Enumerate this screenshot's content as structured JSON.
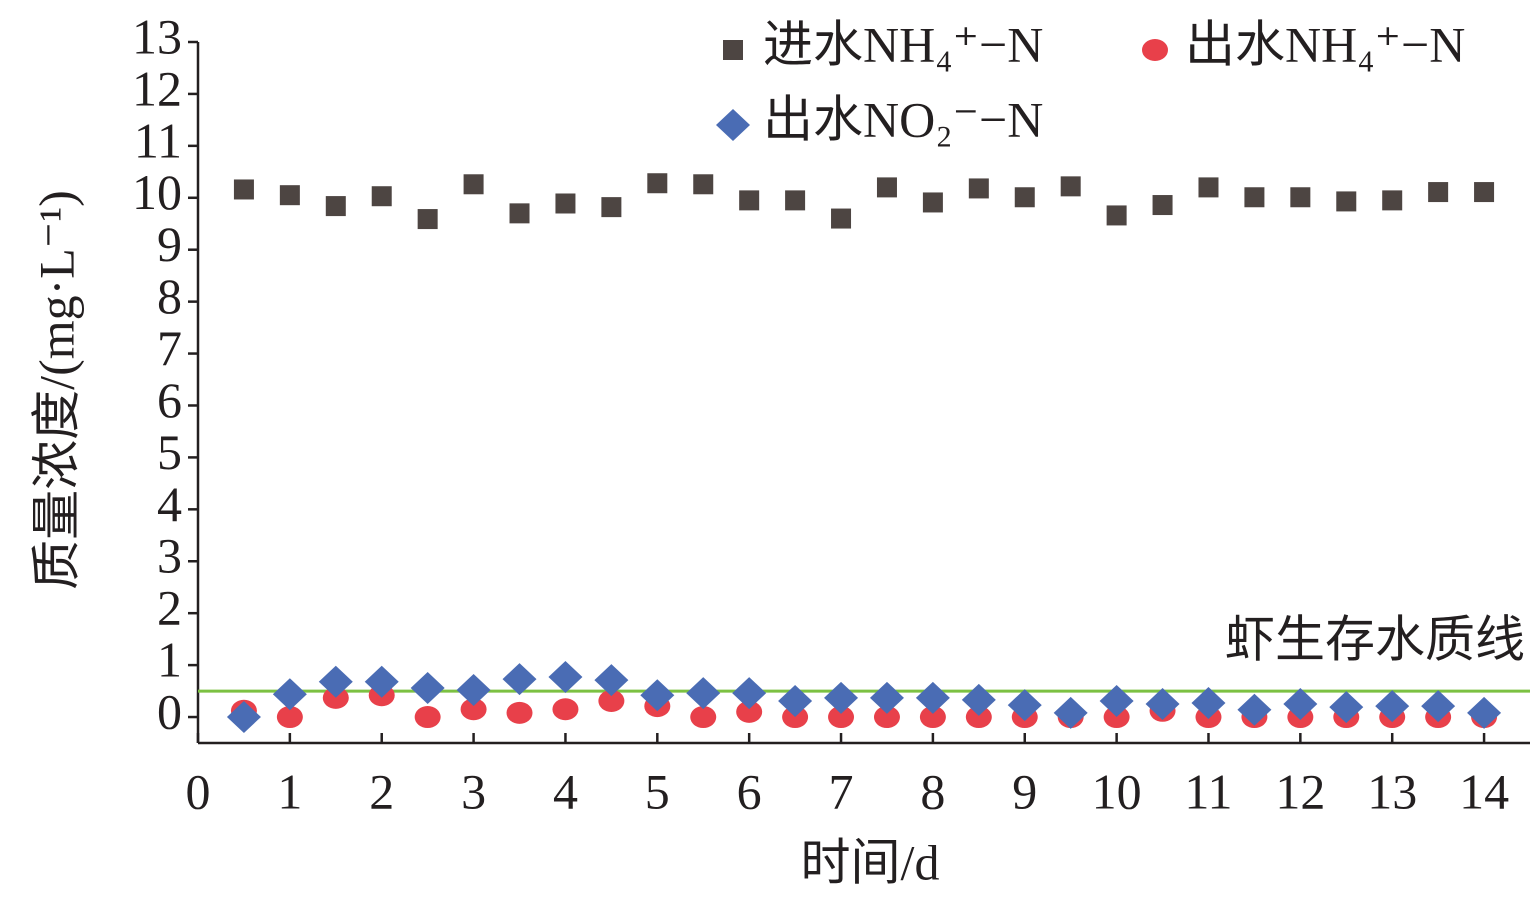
{
  "chart_data": {
    "type": "scatter",
    "x_label": "时间/d",
    "y_label": "质量浓度/(mg·L⁻¹)",
    "x": [
      0.5,
      1,
      1.5,
      2,
      2.5,
      3,
      3.5,
      4,
      4.5,
      5,
      5.5,
      6,
      6.5,
      7,
      7.5,
      8,
      8.5,
      9,
      9.5,
      10,
      10.5,
      11,
      11.5,
      12,
      12.5,
      13,
      13.5,
      14
    ],
    "xlim": [
      0,
      14.5
    ],
    "xticks": [
      0,
      1,
      2,
      3,
      4,
      5,
      6,
      7,
      8,
      9,
      10,
      11,
      12,
      13,
      14
    ],
    "ylim": [
      -0.5,
      13
    ],
    "yticks": [
      0,
      1,
      2,
      3,
      4,
      5,
      6,
      7,
      8,
      9,
      10,
      11,
      12,
      13
    ],
    "grid": false,
    "series": [
      {
        "name": "进水NH₄⁺−N",
        "color": "#4d4542",
        "marker": "square",
        "values": [
          10.16,
          10.05,
          9.84,
          10.03,
          9.59,
          10.26,
          9.7,
          9.89,
          9.82,
          10.28,
          10.26,
          9.95,
          9.95,
          9.6,
          10.2,
          9.91,
          10.18,
          10.01,
          10.22,
          9.66,
          9.86,
          10.2,
          10.01,
          10.01,
          9.93,
          9.95,
          10.11,
          10.11
        ]
      },
      {
        "name": "出水NH₄⁺−N",
        "color": "#e8404a",
        "marker": "circle",
        "values": [
          0.12,
          0,
          0.37,
          0.42,
          0,
          0.15,
          0.08,
          0.15,
          0.31,
          0.21,
          0,
          0.1,
          0,
          0,
          0,
          0,
          0,
          0,
          0,
          0,
          0.12,
          0,
          0,
          0,
          0,
          0,
          0,
          0
        ]
      },
      {
        "name": "出水NO₂⁻−N",
        "color": "#4a6cb4",
        "marker": "diamond",
        "values": [
          0,
          0.44,
          0.68,
          0.68,
          0.56,
          0.52,
          0.73,
          0.77,
          0.71,
          0.42,
          0.46,
          0.46,
          0.31,
          0.37,
          0.37,
          0.37,
          0.33,
          0.23,
          0.08,
          0.31,
          0.25,
          0.27,
          0.14,
          0.25,
          0.19,
          0.21,
          0.21,
          0.08
        ]
      }
    ],
    "reference_line": {
      "value": 0.5,
      "label": "虾生存水质线",
      "color": "#7cc142"
    }
  }
}
